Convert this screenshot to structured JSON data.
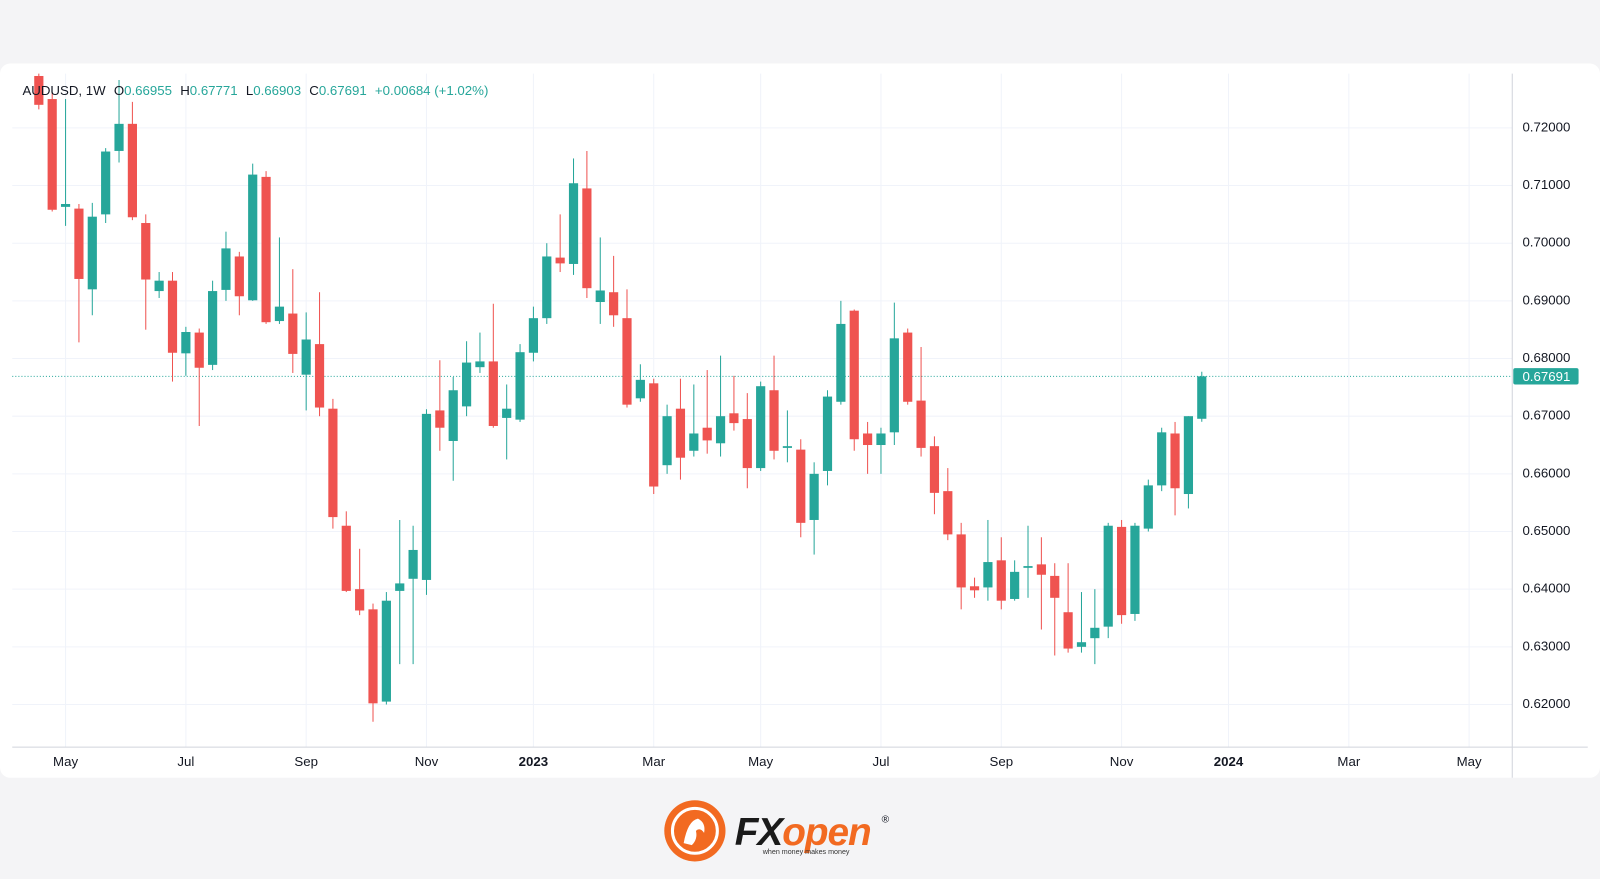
{
  "chart_data": {
    "type": "candlestick",
    "symbol": "AUDUSD, 1W",
    "ohlc_labels": [
      "O",
      "H",
      "L",
      "C"
    ],
    "change": "+0.00684 (+1.02%)",
    "up_color": "#26a69a",
    "down_color": "#ef5350",
    "grid": true,
    "ylim": [
      0.6126,
      0.7294
    ],
    "yticks": [
      {
        "value": 0.62,
        "label": "0.62000"
      },
      {
        "value": 0.63,
        "label": "0.63000"
      },
      {
        "value": 0.64,
        "label": "0.64000"
      },
      {
        "value": 0.65,
        "label": "0.65000"
      },
      {
        "value": 0.66,
        "label": "0.66000"
      },
      {
        "value": 0.67,
        "label": "0.67000"
      },
      {
        "value": 0.68,
        "label": "0.68000"
      },
      {
        "value": 0.69,
        "label": "0.69000"
      },
      {
        "value": 0.7,
        "label": "0.70000"
      },
      {
        "value": 0.71,
        "label": "0.71000"
      },
      {
        "value": 0.72,
        "label": "0.72000"
      }
    ],
    "categories": [
      null,
      null,
      "May",
      null,
      null,
      null,
      null,
      null,
      null,
      null,
      null,
      "Jul",
      null,
      null,
      null,
      null,
      null,
      null,
      null,
      null,
      "Sep",
      null,
      null,
      null,
      null,
      null,
      null,
      null,
      null,
      "Nov",
      null,
      null,
      null,
      null,
      null,
      null,
      null,
      "2023",
      null,
      null,
      null,
      null,
      null,
      null,
      null,
      null,
      "Mar",
      null,
      null,
      null,
      null,
      null,
      null,
      null,
      "May",
      null,
      null,
      null,
      null,
      null,
      null,
      null,
      null,
      "Jul",
      null,
      null,
      null,
      null,
      null,
      null,
      null,
      null,
      "Sep",
      null,
      null,
      null,
      null,
      null,
      null,
      null,
      null,
      "Nov",
      null,
      null,
      null,
      null,
      null,
      null,
      null,
      "2024",
      null,
      null,
      null,
      null,
      null,
      null,
      null,
      null,
      "Mar",
      null,
      null,
      null,
      null,
      null,
      null,
      null,
      null,
      "May",
      null,
      null,
      null
    ],
    "open": [
      0.729,
      0.725,
      0.7063,
      0.706,
      0.692,
      0.705,
      0.716,
      0.7207,
      0.7035,
      0.6917,
      0.6935,
      0.6809,
      0.6845,
      0.6789,
      0.6919,
      0.6977,
      0.6901,
      0.7115,
      0.6865,
      0.6878,
      0.6772,
      0.6825,
      0.6713,
      0.651,
      0.64,
      0.6365,
      0.6205,
      0.6397,
      0.6418,
      0.6416,
      0.671,
      0.6657,
      0.6717,
      0.6785,
      0.6795,
      0.6697,
      0.6694,
      0.681,
      0.687,
      0.6975,
      0.6964,
      0.7095,
      0.6898,
      0.6915,
      0.687,
      0.6731,
      0.6757,
      0.6615,
      0.6713,
      0.664,
      0.668,
      0.6653,
      0.6705,
      0.6695,
      0.661,
      0.6745,
      0.6645,
      0.6642,
      0.652,
      0.6605,
      0.6725,
      0.6883,
      0.667,
      0.665,
      0.6672,
      0.6845,
      0.6727,
      0.6648,
      0.657,
      0.6495,
      0.6405,
      0.6403,
      0.645,
      0.6383,
      0.6437,
      0.6443,
      0.6423,
      0.636,
      0.63,
      0.6315,
      0.6335,
      0.6508,
      0.6357,
      0.6505,
      0.658,
      0.667,
      0.6565,
      0.66955,
      null,
      null,
      null,
      null,
      null,
      null,
      null,
      null,
      null,
      null,
      null,
      null,
      null,
      null,
      null,
      null,
      null,
      null,
      null,
      null,
      null,
      null,
      null
    ],
    "high": [
      0.73,
      0.7262,
      0.725,
      0.7068,
      0.707,
      0.7165,
      0.7283,
      0.7245,
      0.705,
      0.695,
      0.695,
      0.6855,
      0.6852,
      0.6935,
      0.702,
      0.6985,
      0.7138,
      0.7125,
      0.701,
      0.6955,
      0.688,
      0.6915,
      0.673,
      0.6535,
      0.647,
      0.6375,
      0.6395,
      0.652,
      0.651,
      0.6712,
      0.6797,
      0.6768,
      0.683,
      0.6845,
      0.6895,
      0.6755,
      0.6825,
      0.689,
      0.7,
      0.705,
      0.7147,
      0.716,
      0.701,
      0.6978,
      0.692,
      0.679,
      0.6765,
      0.672,
      0.6765,
      0.6755,
      0.678,
      0.6805,
      0.677,
      0.674,
      0.676,
      0.6805,
      0.671,
      0.666,
      0.662,
      0.6745,
      0.69,
      0.6885,
      0.669,
      0.668,
      0.6897,
      0.6852,
      0.682,
      0.6665,
      0.661,
      0.6515,
      0.642,
      0.652,
      0.649,
      0.645,
      0.651,
      0.649,
      0.6445,
      0.6445,
      0.6395,
      0.64,
      0.6515,
      0.652,
      0.6515,
      0.659,
      0.668,
      0.669,
      0.67,
      0.67771,
      null,
      null,
      null,
      null,
      null,
      null,
      null,
      null,
      null,
      null,
      null,
      null,
      null,
      null,
      null,
      null,
      null,
      null,
      null,
      null,
      null,
      null,
      null
    ],
    "low": [
      0.7232,
      0.7055,
      0.703,
      0.6828,
      0.6875,
      0.7035,
      0.714,
      0.704,
      0.685,
      0.6905,
      0.676,
      0.677,
      0.6683,
      0.678,
      0.69,
      0.6875,
      0.69,
      0.686,
      0.686,
      0.6775,
      0.671,
      0.67,
      0.6505,
      0.6395,
      0.6355,
      0.617,
      0.62,
      0.627,
      0.627,
      0.639,
      0.664,
      0.6588,
      0.67,
      0.6775,
      0.668,
      0.6625,
      0.669,
      0.6795,
      0.686,
      0.695,
      0.6945,
      0.6905,
      0.686,
      0.6855,
      0.6715,
      0.6725,
      0.6565,
      0.66,
      0.659,
      0.663,
      0.6635,
      0.663,
      0.6675,
      0.6575,
      0.6605,
      0.6625,
      0.662,
      0.649,
      0.646,
      0.658,
      0.672,
      0.664,
      0.66,
      0.66,
      0.665,
      0.672,
      0.663,
      0.653,
      0.6485,
      0.6365,
      0.6385,
      0.638,
      0.6365,
      0.638,
      0.6385,
      0.633,
      0.6285,
      0.629,
      0.629,
      0.627,
      0.6315,
      0.634,
      0.6345,
      0.65,
      0.657,
      0.6528,
      0.654,
      0.66903,
      null,
      null,
      null,
      null,
      null,
      null,
      null,
      null,
      null,
      null,
      null,
      null,
      null,
      null,
      null,
      null,
      null,
      null,
      null,
      null,
      null,
      null,
      null
    ],
    "close": [
      0.724,
      0.7058,
      0.7068,
      0.6938,
      0.7046,
      0.7159,
      0.7207,
      0.7045,
      0.6937,
      0.6935,
      0.681,
      0.6846,
      0.6784,
      0.6917,
      0.6991,
      0.6908,
      0.7119,
      0.6863,
      0.689,
      0.6808,
      0.6833,
      0.6715,
      0.6525,
      0.6397,
      0.6363,
      0.6202,
      0.638,
      0.641,
      0.6468,
      0.6704,
      0.668,
      0.6745,
      0.6793,
      0.6795,
      0.6683,
      0.6713,
      0.6811,
      0.687,
      0.6977,
      0.6965,
      0.7104,
      0.6922,
      0.6918,
      0.6875,
      0.672,
      0.6763,
      0.6578,
      0.67,
      0.6628,
      0.667,
      0.6658,
      0.67,
      0.6688,
      0.661,
      0.6752,
      0.664,
      0.6648,
      0.6515,
      0.66,
      0.6734,
      0.686,
      0.666,
      0.665,
      0.667,
      0.6835,
      0.6725,
      0.6645,
      0.6567,
      0.6495,
      0.6403,
      0.6398,
      0.6447,
      0.638,
      0.643,
      0.644,
      0.6425,
      0.6385,
      0.6297,
      0.6308,
      0.6333,
      0.651,
      0.6355,
      0.651,
      0.658,
      0.6672,
      0.6575,
      0.67,
      0.67691,
      null,
      null,
      null,
      null,
      null,
      null,
      null,
      null,
      null,
      null,
      null,
      null,
      null,
      null,
      null,
      null,
      null,
      null,
      null,
      null,
      null,
      null,
      null
    ]
  },
  "logo": {
    "brand_dark": "FX",
    "brand_accent": "open",
    "mark": "®",
    "tagline": "when money makes money"
  }
}
